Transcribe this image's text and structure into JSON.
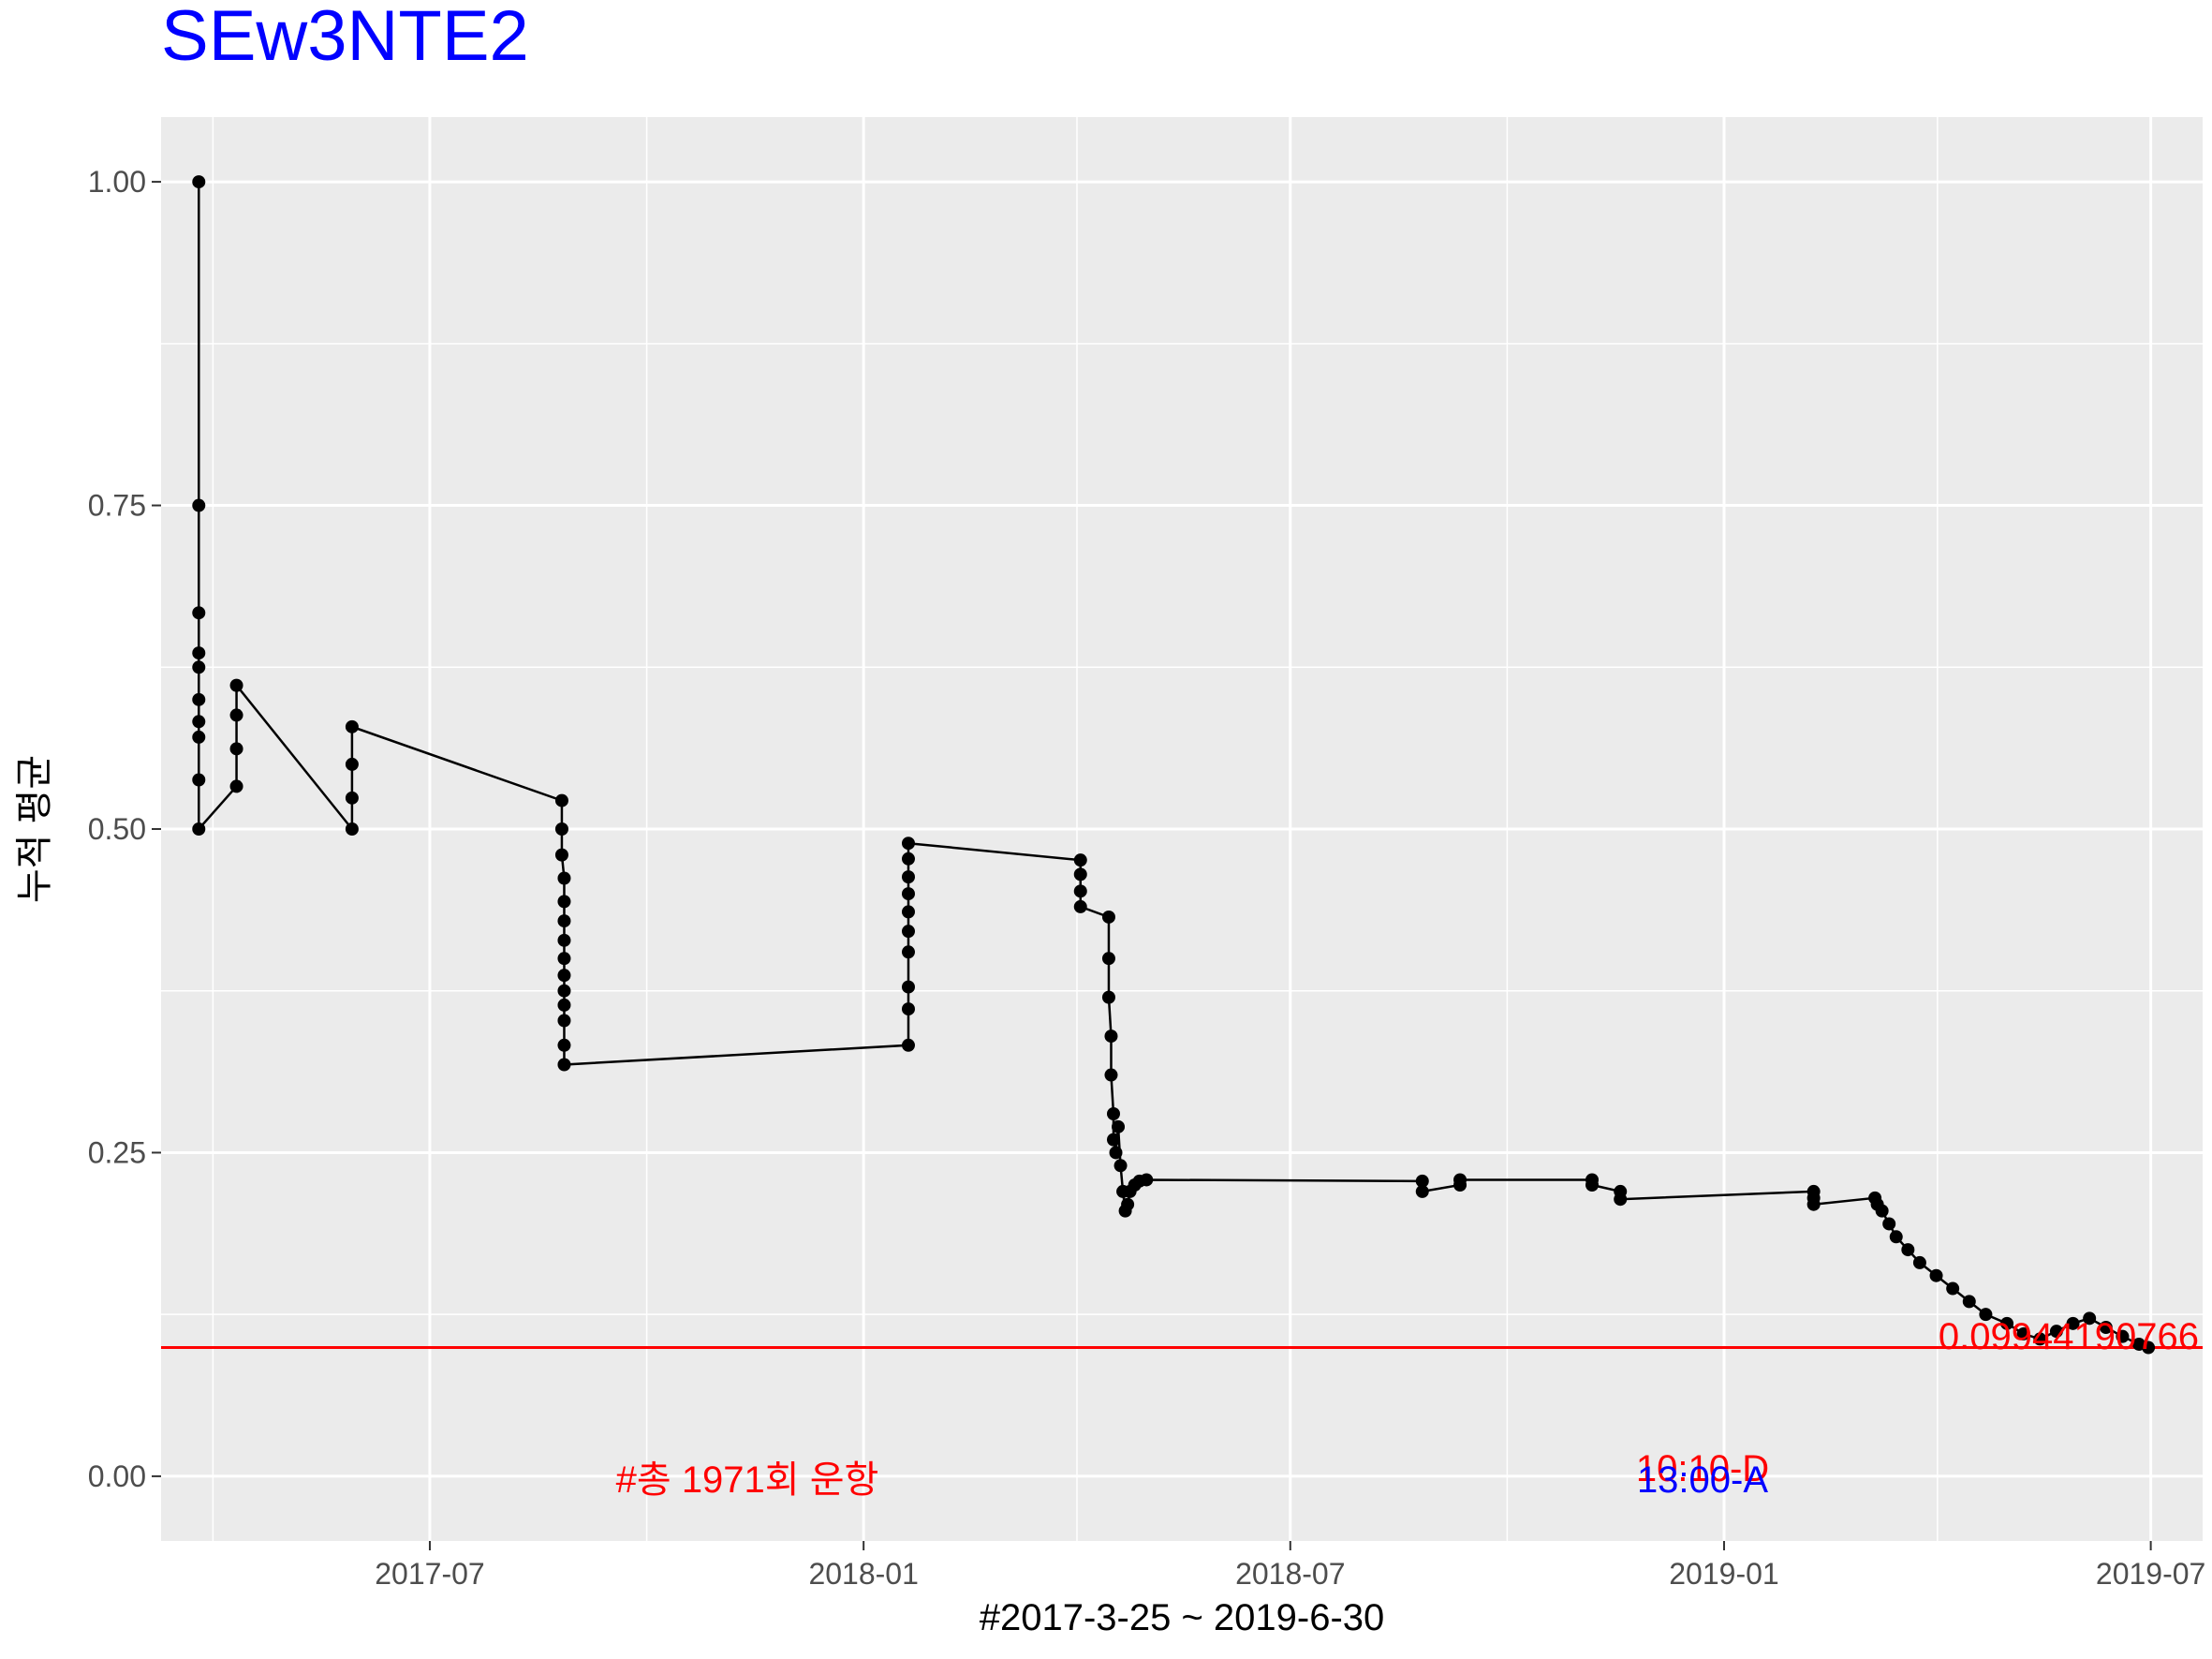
{
  "chart_data": {
    "type": "line",
    "title": "SEw3NTE2",
    "xlabel": "#2017-3-25 ~ 2019-6-30",
    "ylabel": "누적 평균",
    "x_range": [
      "2017-03-09",
      "2019-07-23"
    ],
    "ylim": [
      -0.05,
      1.05
    ],
    "y_ticks": [
      0.0,
      0.25,
      0.5,
      0.75,
      1.0
    ],
    "y_tick_labels": [
      "0.00",
      "0.25",
      "0.50",
      "0.75",
      "1.00"
    ],
    "x_ticks": [
      "2017-07-01",
      "2018-01-01",
      "2018-07-01",
      "2019-01-01",
      "2019-07-01"
    ],
    "x_tick_labels": [
      "2017-07",
      "2018-01",
      "2018-07",
      "2019-01",
      "2019-07"
    ],
    "grid": true,
    "colors": {
      "panel": "#ebebeb",
      "grid": "#ffffff",
      "line": "#000000",
      "hline": "#ff0000",
      "title": "#0000ff"
    },
    "series": [
      {
        "x": [
          "2017-03-25",
          "2017-03-25",
          "2017-03-25",
          "2017-03-25",
          "2017-03-25",
          "2017-03-25",
          "2017-03-25",
          "2017-03-25",
          "2017-03-25",
          "2017-03-25",
          "2017-04-10",
          "2017-04-10",
          "2017-04-10",
          "2017-04-10",
          "2017-05-29",
          "2017-05-29",
          "2017-05-29",
          "2017-05-29",
          "2017-08-26",
          "2017-08-26",
          "2017-08-26",
          "2017-08-27",
          "2017-08-27",
          "2017-08-27",
          "2017-08-27",
          "2017-08-27",
          "2017-08-27",
          "2017-08-27",
          "2017-08-27",
          "2017-08-27",
          "2017-08-27",
          "2017-08-27",
          "2018-01-20",
          "2018-01-20",
          "2018-01-20",
          "2018-01-20",
          "2018-01-20",
          "2018-01-20",
          "2018-01-20",
          "2018-01-20",
          "2018-01-20",
          "2018-01-20",
          "2018-04-03",
          "2018-04-03",
          "2018-04-03",
          "2018-04-03",
          "2018-04-15",
          "2018-04-15",
          "2018-04-15",
          "2018-04-16",
          "2018-04-16",
          "2018-04-17",
          "2018-04-17",
          "2018-04-18",
          "2018-04-19",
          "2018-04-20",
          "2018-04-21",
          "2018-04-22",
          "2018-04-23",
          "2018-04-24",
          "2018-04-26",
          "2018-04-28",
          "2018-05-01",
          "2018-08-26",
          "2018-08-26",
          "2018-09-11",
          "2018-09-11",
          "2018-11-06",
          "2018-11-06",
          "2018-11-18",
          "2018-11-18",
          "2019-02-08",
          "2019-02-08",
          "2019-02-08",
          "2019-03-06",
          "2019-03-07",
          "2019-03-09",
          "2019-03-12",
          "2019-03-15",
          "2019-03-20",
          "2019-03-25",
          "2019-04-01",
          "2019-04-08",
          "2019-04-15",
          "2019-04-22",
          "2019-05-01",
          "2019-05-08",
          "2019-05-15",
          "2019-05-22",
          "2019-05-29",
          "2019-06-05",
          "2019-06-12",
          "2019-06-19",
          "2019-06-26",
          "2019-06-30"
        ],
        "y": [
          1.0,
          0.75,
          0.667,
          0.636,
          0.625,
          0.6,
          0.583,
          0.571,
          0.538,
          0.5,
          0.533,
          0.562,
          0.588,
          0.611,
          0.5,
          0.524,
          0.55,
          0.579,
          0.522,
          0.5,
          0.48,
          0.462,
          0.444,
          0.429,
          0.414,
          0.4,
          0.387,
          0.375,
          0.364,
          0.352,
          0.333,
          0.318,
          0.333,
          0.361,
          0.378,
          0.405,
          0.421,
          0.436,
          0.45,
          0.463,
          0.477,
          0.489,
          0.476,
          0.465,
          0.452,
          0.44,
          0.432,
          0.4,
          0.37,
          0.34,
          0.31,
          0.28,
          0.26,
          0.25,
          0.27,
          0.24,
          0.22,
          0.205,
          0.21,
          0.22,
          0.225,
          0.228,
          0.229,
          0.228,
          0.22,
          0.225,
          0.229,
          0.229,
          0.225,
          0.22,
          0.214,
          0.22,
          0.215,
          0.21,
          0.215,
          0.21,
          0.205,
          0.195,
          0.185,
          0.175,
          0.165,
          0.155,
          0.145,
          0.135,
          0.125,
          0.118,
          0.11,
          0.106,
          0.112,
          0.118,
          0.122,
          0.115,
          0.108,
          0.102,
          0.0994
        ]
      }
    ],
    "hline": {
      "y": 0.09944190766,
      "label": "0.09944190766"
    },
    "annotations": {
      "total": "#총 1971회 운항",
      "dep": "10:10-D",
      "arr": "13:00-A"
    }
  }
}
